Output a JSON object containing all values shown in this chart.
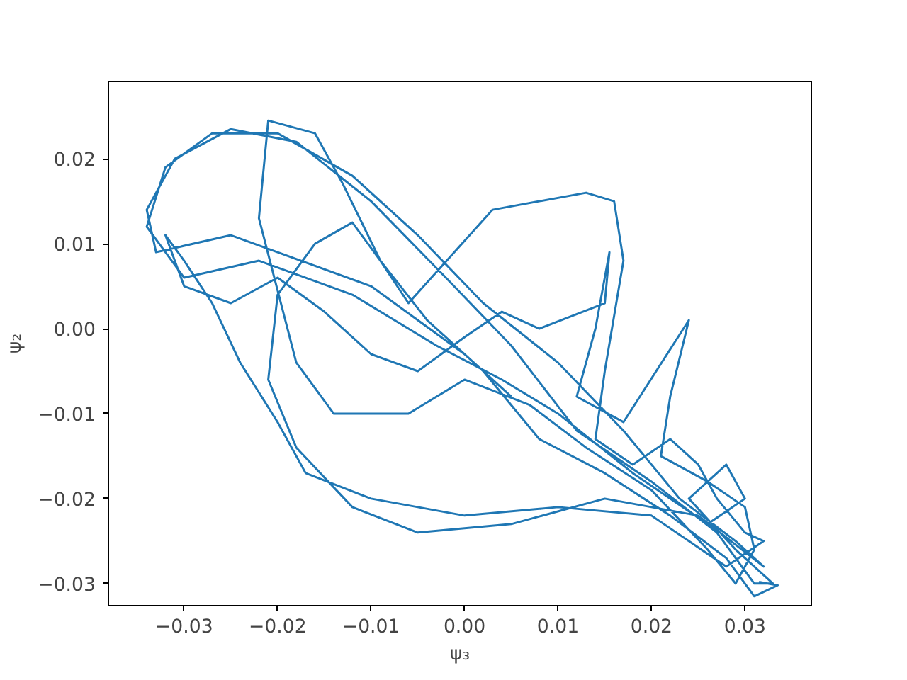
{
  "chart_data": {
    "type": "line",
    "xlabel": "ψ₃",
    "ylabel": "ψ₂",
    "xlim": [
      -0.0381,
      0.0371
    ],
    "ylim": [
      -0.0326,
      0.0291
    ],
    "xticks": [
      -0.03,
      -0.02,
      -0.01,
      {
        "value": 0.0,
        "label": "0.00"
      },
      0.01,
      0.02,
      0.03
    ],
    "yticks": [
      -0.03,
      -0.02,
      -0.01,
      {
        "value": 0.0,
        "label": "0.00"
      },
      0.01,
      0.02
    ],
    "grid": false,
    "line_style": "solid",
    "series": [
      {
        "color": "#1f77b4",
        "x": [
          0.005,
          0.0,
          -0.01,
          -0.025,
          -0.033,
          -0.034,
          -0.031,
          -0.025,
          -0.018,
          -0.01,
          -0.002,
          0.005,
          0.012,
          0.02,
          0.027,
          0.031,
          0.033,
          0.029,
          0.024,
          0.028,
          0.03,
          0.026,
          0.018,
          0.01,
          0.004,
          -0.003,
          -0.012,
          -0.022,
          -0.03,
          -0.034,
          -0.032,
          -0.027,
          -0.02,
          -0.012,
          -0.005,
          0.002,
          0.01,
          0.017,
          0.023,
          0.029,
          0.032,
          0.025,
          0.015,
          0.005,
          -0.005,
          -0.012,
          -0.018,
          -0.021,
          -0.02,
          -0.016,
          -0.012,
          -0.009,
          -0.006,
          0.003,
          0.013,
          0.016,
          0.017,
          0.015,
          0.014,
          0.018,
          0.022,
          0.025,
          0.027,
          0.03,
          0.032,
          0.028,
          0.02,
          0.01,
          0.0,
          -0.01,
          -0.017,
          -0.02,
          -0.024,
          -0.027,
          -0.03,
          -0.032,
          -0.03,
          -0.025,
          -0.02,
          -0.015,
          -0.01,
          -0.005,
          0.0,
          0.004,
          0.008,
          0.015,
          0.0155,
          0.014,
          0.012,
          0.017,
          0.024,
          0.022,
          0.021,
          0.026,
          0.03,
          0.031,
          0.029,
          0.026,
          0.02,
          0.013,
          0.007,
          0.0,
          -0.006,
          -0.014,
          -0.018,
          -0.022,
          -0.021,
          -0.016,
          -0.013,
          -0.009,
          -0.004,
          0.002,
          0.008,
          0.015,
          0.022,
          0.028,
          0.031,
          0.0335,
          0.0315
        ],
        "values": [
          -0.008,
          -0.003,
          0.005,
          0.011,
          0.009,
          0.014,
          0.02,
          0.0235,
          0.022,
          0.015,
          0.006,
          -0.002,
          -0.012,
          -0.018,
          -0.024,
          -0.03,
          -0.03,
          -0.026,
          -0.02,
          -0.016,
          -0.02,
          -0.023,
          -0.017,
          -0.01,
          -0.006,
          -0.002,
          0.004,
          0.008,
          0.006,
          0.012,
          0.019,
          0.023,
          0.023,
          0.018,
          0.011,
          0.003,
          -0.004,
          -0.012,
          -0.02,
          -0.025,
          -0.028,
          -0.022,
          -0.02,
          -0.023,
          -0.024,
          -0.021,
          -0.014,
          -0.006,
          0.004,
          0.01,
          0.0125,
          0.008,
          0.003,
          0.014,
          0.016,
          0.015,
          0.008,
          -0.005,
          -0.013,
          -0.016,
          -0.013,
          -0.016,
          -0.02,
          -0.024,
          -0.025,
          -0.028,
          -0.022,
          -0.021,
          -0.022,
          -0.02,
          -0.017,
          -0.011,
          -0.004,
          0.003,
          0.008,
          0.011,
          0.005,
          0.003,
          0.006,
          0.002,
          -0.003,
          -0.005,
          -0.001,
          0.002,
          0.0,
          0.003,
          0.009,
          0.0,
          -0.008,
          -0.011,
          0.001,
          -0.008,
          -0.015,
          -0.018,
          -0.021,
          -0.026,
          -0.03,
          -0.026,
          -0.019,
          -0.014,
          -0.009,
          -0.006,
          -0.01,
          -0.01,
          -0.004,
          0.013,
          0.0245,
          0.023,
          0.017,
          0.008,
          0.001,
          -0.005,
          -0.013,
          -0.017,
          -0.022,
          -0.027,
          -0.0315,
          -0.0302,
          -0.0298
        ]
      }
    ]
  }
}
